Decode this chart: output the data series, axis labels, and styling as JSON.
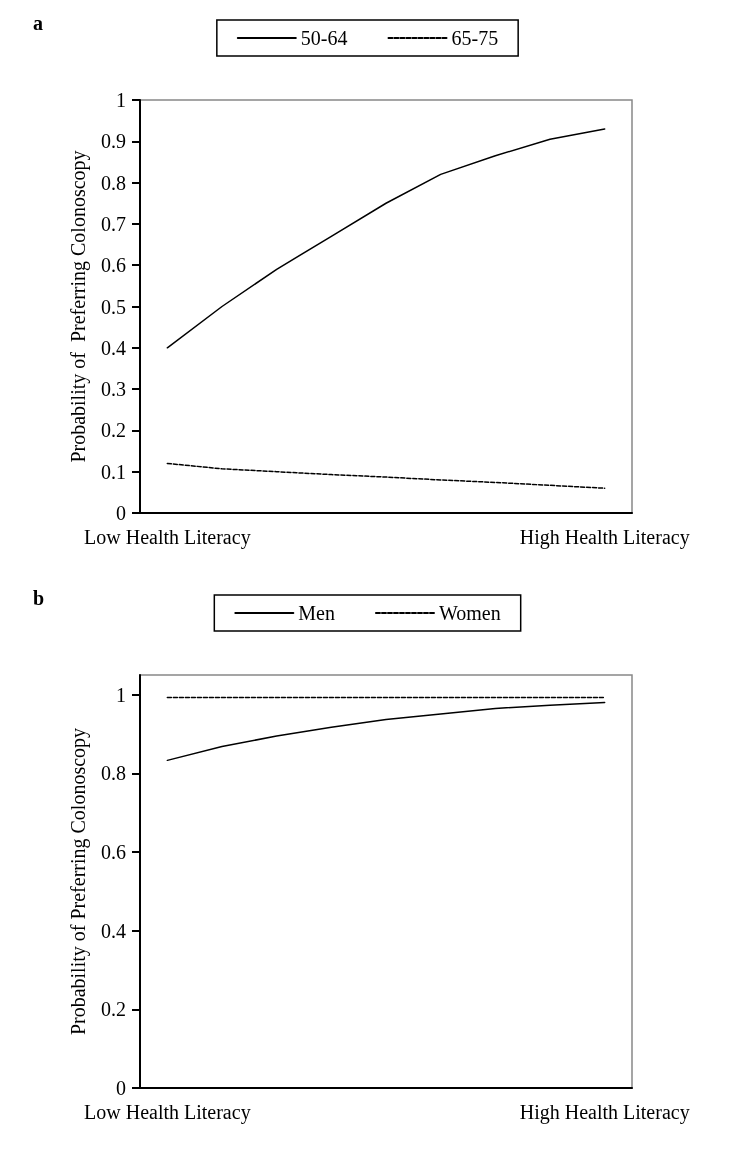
{
  "chart_data": [
    {
      "type": "line",
      "title": "a",
      "ylabel": "Probability of  Preferring Colonoscopy",
      "categories": [
        "Low Health Literacy",
        null,
        null,
        null,
        null,
        null,
        null,
        null,
        "High Health Literacy"
      ],
      "series": [
        {
          "name": "50-64",
          "color": "#000000",
          "line_style": "solid",
          "values": [
            0.4,
            0.5,
            0.59,
            0.67,
            0.75,
            0.82,
            0.865,
            0.905,
            0.93
          ]
        },
        {
          "name": "65-75",
          "color": "#000000",
          "line_style": "dashed",
          "values": [
            0.12,
            0.107,
            0.1,
            0.093,
            0.087,
            0.08,
            0.074,
            0.067,
            0.06
          ]
        }
      ],
      "ylim": [
        0,
        1
      ],
      "yticks": [
        0,
        0.1,
        0.2,
        0.3,
        0.4,
        0.5,
        0.6,
        0.7,
        0.8,
        0.9,
        1
      ],
      "grid": false,
      "legend": "top",
      "marker": "none"
    },
    {
      "type": "line",
      "title": "b",
      "ylabel": "Probability of Preferring Colonoscopy",
      "categories": [
        "Low Health Literacy",
        null,
        null,
        null,
        null,
        null,
        null,
        null,
        "High Health Literacy"
      ],
      "series": [
        {
          "name": "Men",
          "color": "#000000",
          "line_style": "solid",
          "values": [
            0.833,
            0.868,
            0.895,
            0.917,
            0.937,
            0.951,
            0.965,
            0.973,
            0.98
          ]
        },
        {
          "name": "Women",
          "color": "#000000",
          "line_style": "dashed",
          "values": [
            0.993,
            0.993,
            0.993,
            0.993,
            0.993,
            0.993,
            0.993,
            0.993,
            0.993
          ]
        }
      ],
      "ylim": [
        0,
        1.05
      ],
      "yticks": [
        0,
        0.2,
        0.4,
        0.6,
        0.8,
        1
      ],
      "grid": false,
      "legend": "top",
      "marker": "none"
    }
  ]
}
